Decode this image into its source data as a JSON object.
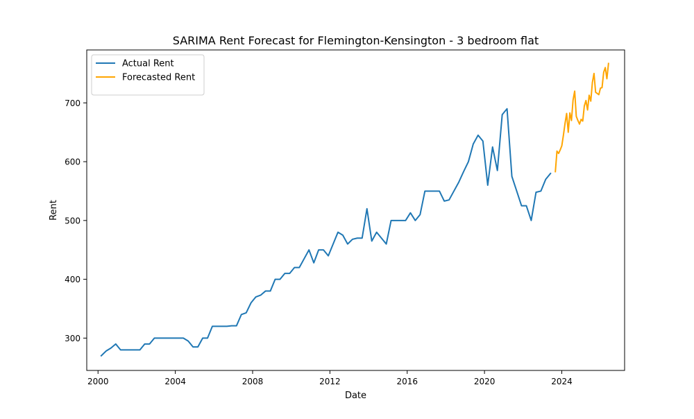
{
  "chart_data": {
    "type": "line",
    "title": "SARIMA Rent Forecast for Flemington-Kensington - 3 bedroom flat",
    "xlabel": "Date",
    "ylabel": "Rent",
    "xlim": [
      "1999-06",
      "2027-04"
    ],
    "ylim": [
      245,
      790
    ],
    "x_ticks": [
      "2000",
      "2004",
      "2008",
      "2012",
      "2016",
      "2020",
      "2024"
    ],
    "y_ticks": [
      300,
      400,
      500,
      600,
      700
    ],
    "grid": false,
    "legend_position": "top-left",
    "series": [
      {
        "name": "Actual Rent",
        "color": "#1f77b4",
        "points": [
          [
            "2000-03",
            270
          ],
          [
            "2000-06",
            278
          ],
          [
            "2000-09",
            283
          ],
          [
            "2000-12",
            290
          ],
          [
            "2001-03",
            280
          ],
          [
            "2001-06",
            280
          ],
          [
            "2001-09",
            280
          ],
          [
            "2001-12",
            280
          ],
          [
            "2002-03",
            280
          ],
          [
            "2002-06",
            290
          ],
          [
            "2002-09",
            290
          ],
          [
            "2002-12",
            300
          ],
          [
            "2003-03",
            300
          ],
          [
            "2003-06",
            300
          ],
          [
            "2003-09",
            300
          ],
          [
            "2003-12",
            300
          ],
          [
            "2004-03",
            300
          ],
          [
            "2004-06",
            300
          ],
          [
            "2004-09",
            295
          ],
          [
            "2004-12",
            285
          ],
          [
            "2005-03",
            285
          ],
          [
            "2005-06",
            300
          ],
          [
            "2005-09",
            300
          ],
          [
            "2005-12",
            320
          ],
          [
            "2006-03",
            320
          ],
          [
            "2006-06",
            320
          ],
          [
            "2006-09",
            320
          ],
          [
            "2006-12",
            321
          ],
          [
            "2007-03",
            321
          ],
          [
            "2007-06",
            340
          ],
          [
            "2007-09",
            343
          ],
          [
            "2007-12",
            360
          ],
          [
            "2008-03",
            370
          ],
          [
            "2008-06",
            373
          ],
          [
            "2008-09",
            380
          ],
          [
            "2008-12",
            380
          ],
          [
            "2009-03",
            400
          ],
          [
            "2009-06",
            400
          ],
          [
            "2009-09",
            410
          ],
          [
            "2009-12",
            410
          ],
          [
            "2010-03",
            420
          ],
          [
            "2010-06",
            420
          ],
          [
            "2010-09",
            435
          ],
          [
            "2010-12",
            450
          ],
          [
            "2011-03",
            428
          ],
          [
            "2011-06",
            450
          ],
          [
            "2011-09",
            450
          ],
          [
            "2011-12",
            440
          ],
          [
            "2012-03",
            460
          ],
          [
            "2012-06",
            480
          ],
          [
            "2012-09",
            475
          ],
          [
            "2012-12",
            460
          ],
          [
            "2013-03",
            468
          ],
          [
            "2013-06",
            470
          ],
          [
            "2013-09",
            470
          ],
          [
            "2013-12",
            520
          ],
          [
            "2014-03",
            465
          ],
          [
            "2014-06",
            480
          ],
          [
            "2014-09",
            470
          ],
          [
            "2014-12",
            460
          ],
          [
            "2015-03",
            500
          ],
          [
            "2015-06",
            500
          ],
          [
            "2015-09",
            500
          ],
          [
            "2015-12",
            500
          ],
          [
            "2016-03",
            513
          ],
          [
            "2016-06",
            500
          ],
          [
            "2016-09",
            510
          ],
          [
            "2016-12",
            550
          ],
          [
            "2017-03",
            550
          ],
          [
            "2017-06",
            550
          ],
          [
            "2017-09",
            550
          ],
          [
            "2017-12",
            533
          ],
          [
            "2018-03",
            535
          ],
          [
            "2018-06",
            550
          ],
          [
            "2018-09",
            565
          ],
          [
            "2018-12",
            583
          ],
          [
            "2019-03",
            600
          ],
          [
            "2019-06",
            630
          ],
          [
            "2019-09",
            645
          ],
          [
            "2019-12",
            635
          ],
          [
            "2020-03",
            560
          ],
          [
            "2020-06",
            625
          ],
          [
            "2020-09",
            585
          ],
          [
            "2020-12",
            680
          ],
          [
            "2021-03",
            690
          ],
          [
            "2021-06",
            575
          ],
          [
            "2021-09",
            550
          ],
          [
            "2021-12",
            525
          ],
          [
            "2022-03",
            525
          ],
          [
            "2022-06",
            500
          ],
          [
            "2022-09",
            548
          ],
          [
            "2022-12",
            550
          ],
          [
            "2023-03",
            570
          ],
          [
            "2023-06",
            580
          ]
        ]
      },
      {
        "name": "Forecasted Rent",
        "color": "#ffa500",
        "points": [
          [
            "2023-09",
            583
          ],
          [
            "2023-10",
            618
          ],
          [
            "2023-11",
            614
          ],
          [
            "2023-12",
            620
          ],
          [
            "2024-01",
            627
          ],
          [
            "2024-02",
            645
          ],
          [
            "2024-03",
            665
          ],
          [
            "2024-04",
            682
          ],
          [
            "2024-05",
            650
          ],
          [
            "2024-06",
            683
          ],
          [
            "2024-07",
            670
          ],
          [
            "2024-08",
            705
          ],
          [
            "2024-09",
            720
          ],
          [
            "2024-10",
            677
          ],
          [
            "2024-11",
            670
          ],
          [
            "2024-12",
            664
          ],
          [
            "2025-01",
            672
          ],
          [
            "2025-02",
            669
          ],
          [
            "2025-03",
            695
          ],
          [
            "2025-04",
            704
          ],
          [
            "2025-05",
            688
          ],
          [
            "2025-06",
            713
          ],
          [
            "2025-07",
            703
          ],
          [
            "2025-08",
            735
          ],
          [
            "2025-09",
            750
          ],
          [
            "2025-10",
            718
          ],
          [
            "2025-11",
            716
          ],
          [
            "2025-12",
            714
          ],
          [
            "2026-01",
            725
          ],
          [
            "2026-02",
            726
          ],
          [
            "2026-03",
            752
          ],
          [
            "2026-04",
            760
          ],
          [
            "2026-05",
            741
          ],
          [
            "2026-06",
            767
          ]
        ]
      }
    ]
  }
}
